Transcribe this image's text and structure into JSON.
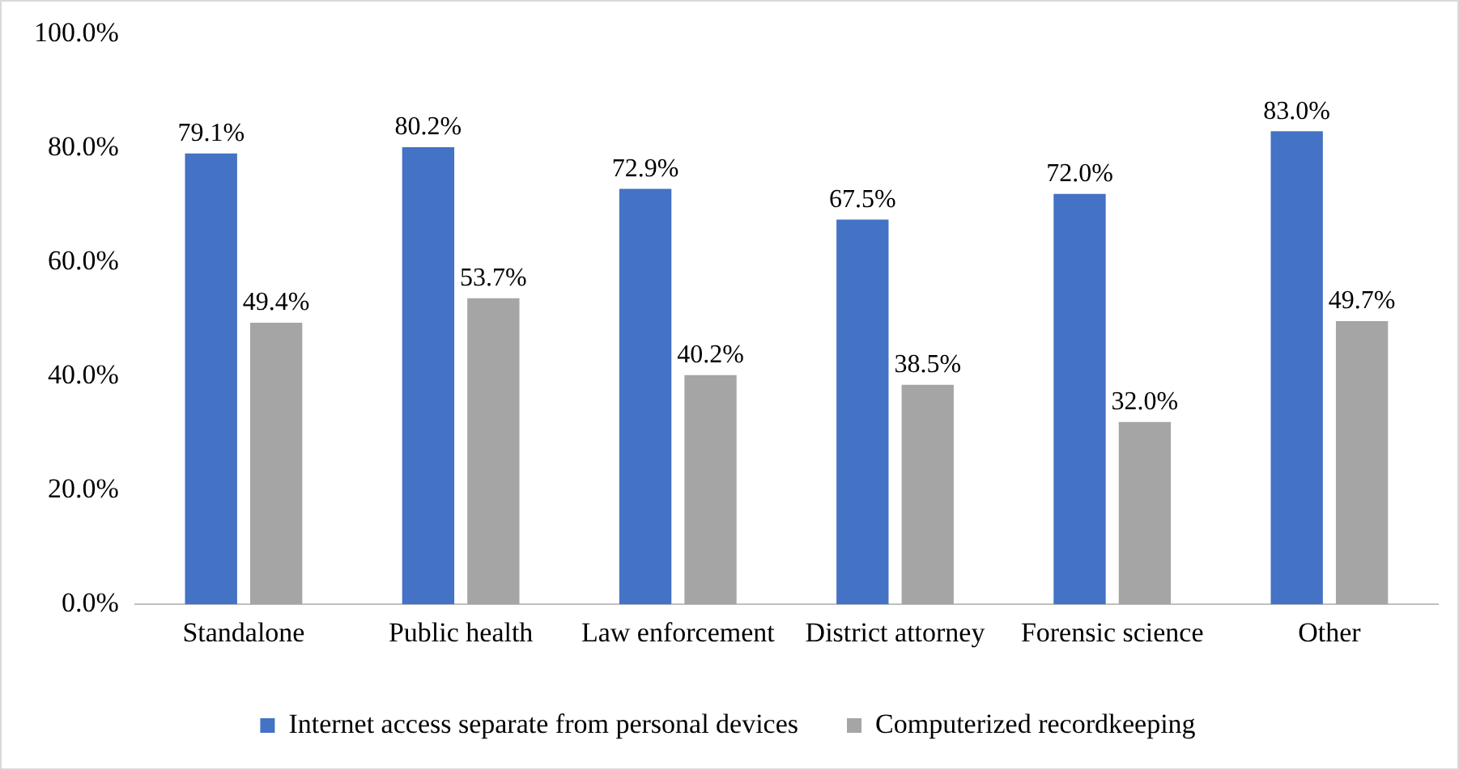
{
  "chart_data": {
    "type": "bar",
    "categories": [
      "Standalone",
      "Public health",
      "Law enforcement",
      "District attorney",
      "Forensic science",
      "Other"
    ],
    "series": [
      {
        "name": "Internet access separate from personal devices",
        "color": "#4472c4",
        "values": [
          79.1,
          80.2,
          72.9,
          67.5,
          72.0,
          83.0
        ],
        "value_labels": [
          "79.1%",
          "80.2%",
          "72.9%",
          "67.5%",
          "72.0%",
          "83.0%"
        ]
      },
      {
        "name": "Computerized recordkeeping",
        "color": "#a5a5a5",
        "values": [
          49.4,
          53.7,
          40.2,
          38.5,
          32.0,
          49.7
        ],
        "value_labels": [
          "49.4%",
          "53.7%",
          "40.2%",
          "38.5%",
          "32.0%",
          "49.7%"
        ]
      }
    ],
    "ylim": [
      0,
      100
    ],
    "yticks": [
      {
        "value": 0,
        "label": "0.0%"
      },
      {
        "value": 20,
        "label": "20.0%"
      },
      {
        "value": 40,
        "label": "40.0%"
      },
      {
        "value": 60,
        "label": "60.0%"
      },
      {
        "value": 80,
        "label": "80.0%"
      },
      {
        "value": 100,
        "label": "100.0%"
      }
    ],
    "grid": false,
    "legend": "bottom"
  }
}
